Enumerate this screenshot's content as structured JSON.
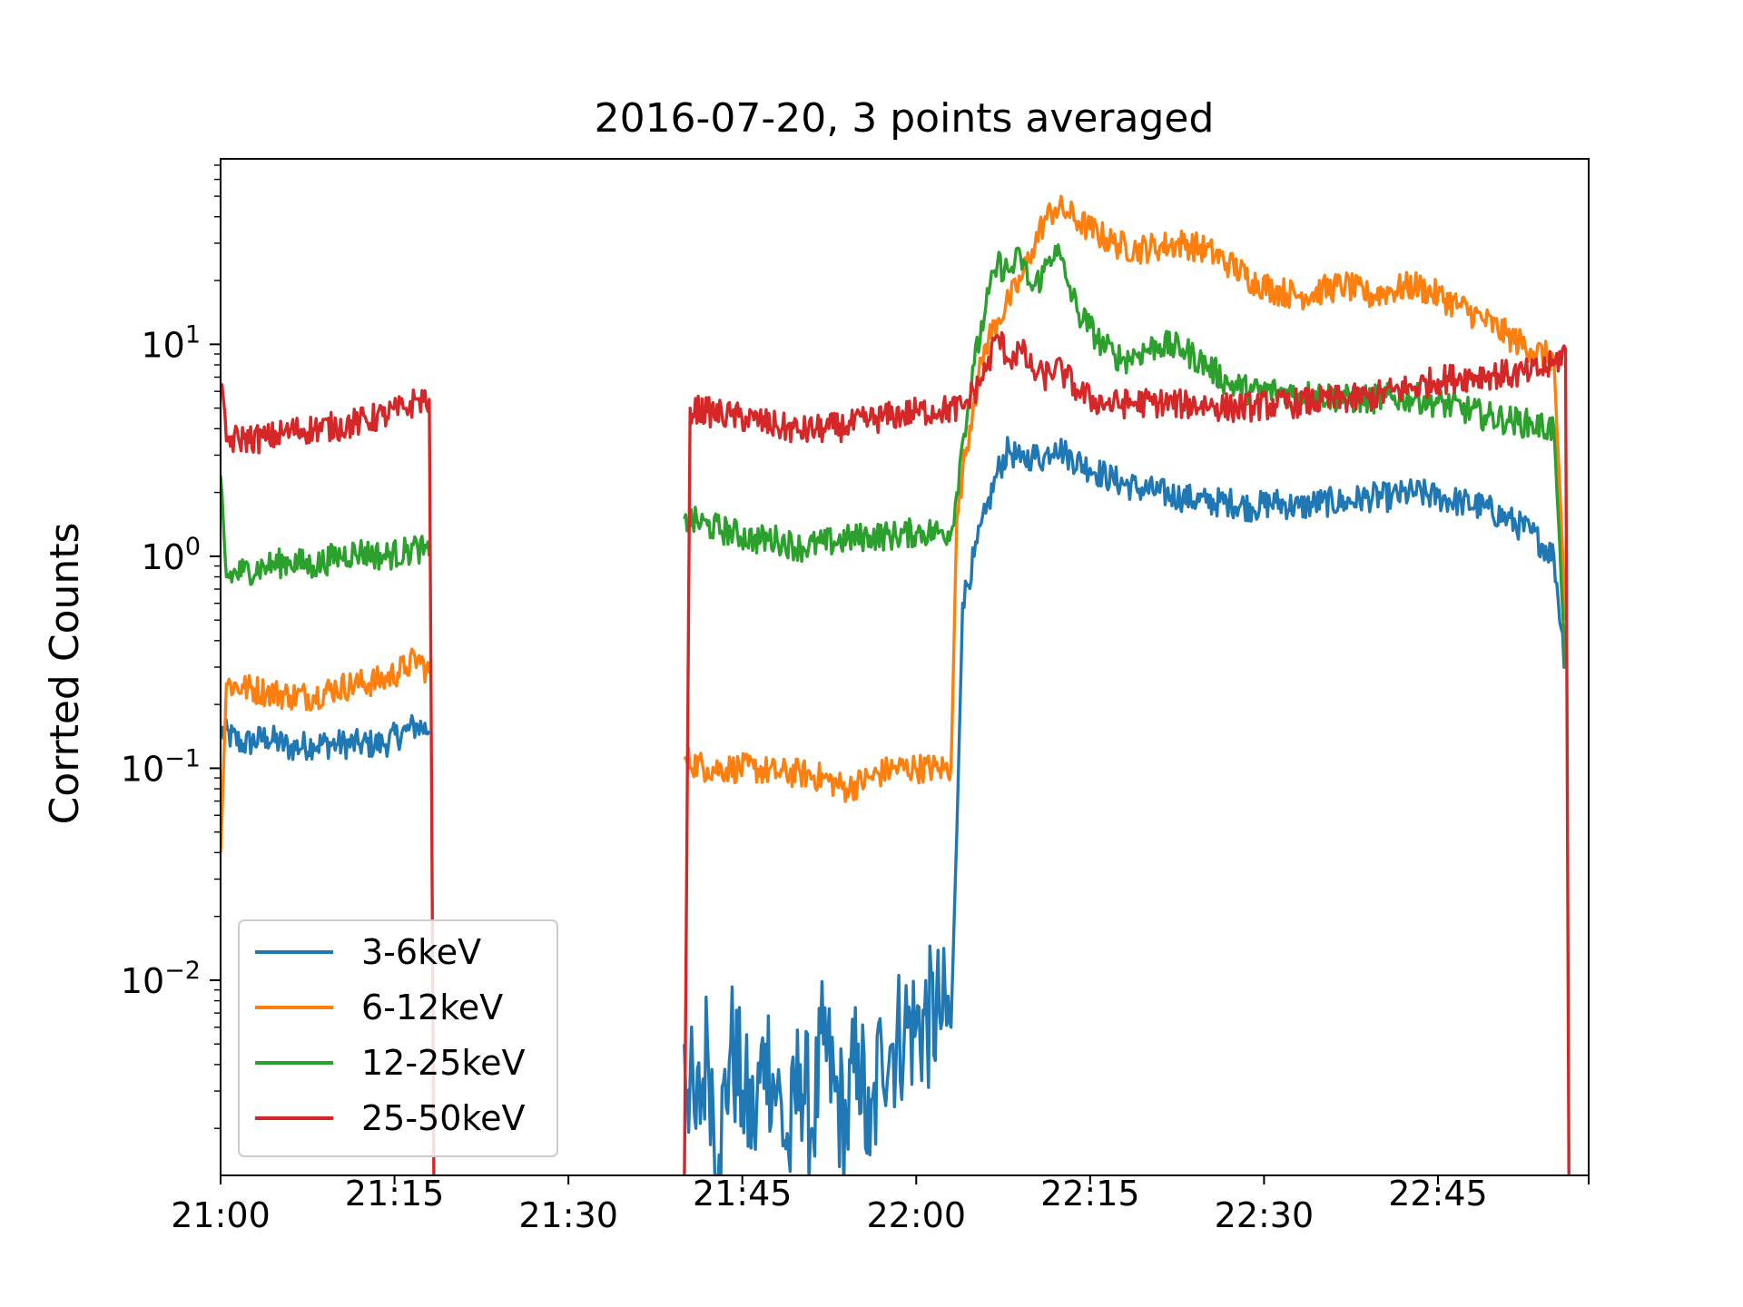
{
  "chart_data": {
    "type": "line",
    "title": "2016-07-20, 3 points averaged",
    "xlabel": "",
    "ylabel": "Corrted Counts",
    "yscale": "log",
    "xlim": [
      "21:00",
      "22:58"
    ],
    "ylim": [
      0.0012,
      75
    ],
    "grid": false,
    "legend_position": "lower-left",
    "x_ticks": [
      "21:00",
      "21:15",
      "21:30",
      "21:45",
      "22:00",
      "22:15",
      "22:30",
      "22:45"
    ],
    "y_ticks": [
      {
        "value": 0.01,
        "base": "10",
        "exp": "−2"
      },
      {
        "value": 0.1,
        "base": "10",
        "exp": "−1"
      },
      {
        "value": 1,
        "base": "10",
        "exp": "0"
      },
      {
        "value": 10,
        "base": "10",
        "exp": "1"
      }
    ],
    "series": [
      {
        "name": "3-6keV",
        "color": "#1f77b4",
        "segments": [
          [
            [
              "21:00",
              0.15
            ],
            [
              "21:02",
              0.13
            ],
            [
              "21:04",
              0.14
            ],
            [
              "21:06",
              0.125
            ],
            [
              "21:08",
              0.13
            ],
            [
              "21:10",
              0.13
            ],
            [
              "21:12",
              0.13
            ],
            [
              "21:14",
              0.13
            ],
            [
              "21:16",
              0.15
            ],
            [
              "21:17",
              0.16
            ],
            [
              "21:18",
              0.15
            ]
          ],
          [
            [
              "21:40",
              0.005
            ],
            [
              "21:41",
              0.002
            ],
            [
              "21:42",
              0.005
            ],
            [
              "21:43",
              0.0015
            ],
            [
              "21:44",
              0.005
            ],
            [
              "21:45",
              0.003
            ],
            [
              "21:46",
              0.002
            ],
            [
              "21:47",
              0.005
            ],
            [
              "21:48",
              0.003
            ],
            [
              "21:49",
              0.0015
            ],
            [
              "21:50",
              0.004
            ],
            [
              "21:51",
              0.002
            ],
            [
              "21:52",
              0.005
            ],
            [
              "21:53",
              0.003
            ],
            [
              "21:54",
              0.002
            ],
            [
              "21:55",
              0.005
            ],
            [
              "21:56",
              0.0015
            ],
            [
              "21:57",
              0.005
            ],
            [
              "21:58",
              0.005
            ],
            [
              "21:59",
              0.006
            ],
            [
              "22:00",
              0.006
            ],
            [
              "22:02",
              0.007
            ],
            [
              "22:03",
              0.006
            ],
            [
              "22:03.5",
              0.05
            ],
            [
              "22:04",
              0.6
            ],
            [
              "22:05",
              1.0
            ],
            [
              "22:06",
              1.6
            ],
            [
              "22:07",
              2.5
            ],
            [
              "22:08",
              3.2
            ],
            [
              "22:09",
              2.8
            ],
            [
              "22:10",
              3.0
            ],
            [
              "22:11",
              2.9
            ],
            [
              "22:12",
              3.4
            ],
            [
              "22:13",
              3.0
            ],
            [
              "22:15",
              2.6
            ],
            [
              "22:17",
              2.3
            ],
            [
              "22:19",
              2.1
            ],
            [
              "22:21",
              2.0
            ],
            [
              "22:23",
              1.9
            ],
            [
              "22:25",
              1.8
            ],
            [
              "22:27",
              1.8
            ],
            [
              "22:29",
              1.7
            ],
            [
              "22:31",
              1.8
            ],
            [
              "22:33",
              1.7
            ],
            [
              "22:35",
              1.8
            ],
            [
              "22:37",
              1.8
            ],
            [
              "22:39",
              1.9
            ],
            [
              "22:41",
              1.9
            ],
            [
              "22:43",
              2.0
            ],
            [
              "22:45",
              1.9
            ],
            [
              "22:47",
              1.8
            ],
            [
              "22:49",
              1.7
            ],
            [
              "22:51",
              1.5
            ],
            [
              "22:53",
              1.3
            ],
            [
              "22:55",
              1.0
            ],
            [
              "22:56",
              0.3
            ]
          ]
        ]
      },
      {
        "name": "6-12keV",
        "color": "#ff7f0e",
        "segments": [
          [
            [
              "21:00",
              0.04
            ],
            [
              "21:00.5",
              0.25
            ],
            [
              "21:02",
              0.24
            ],
            [
              "21:04",
              0.23
            ],
            [
              "21:06",
              0.22
            ],
            [
              "21:08",
              0.22
            ],
            [
              "21:10",
              0.24
            ],
            [
              "21:12",
              0.25
            ],
            [
              "21:14",
              0.26
            ],
            [
              "21:16",
              0.3
            ],
            [
              "21:17",
              0.33
            ],
            [
              "21:18",
              0.28
            ]
          ],
          [
            [
              "21:40",
              0.11
            ],
            [
              "21:42",
              0.1
            ],
            [
              "21:44",
              0.1
            ],
            [
              "21:46",
              0.1
            ],
            [
              "21:48",
              0.095
            ],
            [
              "21:50",
              0.095
            ],
            [
              "21:52",
              0.09
            ],
            [
              "21:54",
              0.08
            ],
            [
              "21:56",
              0.09
            ],
            [
              "21:58",
              0.1
            ],
            [
              "22:00",
              0.1
            ],
            [
              "22:02",
              0.1
            ],
            [
              "22:03",
              0.1
            ],
            [
              "22:03.5",
              1.5
            ],
            [
              "22:04",
              2.5
            ],
            [
              "22:05",
              5.5
            ],
            [
              "22:06",
              10
            ],
            [
              "22:07",
              13
            ],
            [
              "22:08",
              16
            ],
            [
              "22:09",
              20
            ],
            [
              "22:10",
              28
            ],
            [
              "22:11",
              38
            ],
            [
              "22:12",
              44
            ],
            [
              "22:13",
              42
            ],
            [
              "22:14",
              38
            ],
            [
              "22:15",
              35
            ],
            [
              "22:17",
              30
            ],
            [
              "22:19",
              28
            ],
            [
              "22:21",
              29
            ],
            [
              "22:23",
              30
            ],
            [
              "22:25",
              28
            ],
            [
              "22:27",
              24
            ],
            [
              "22:29",
              20
            ],
            [
              "22:31",
              18
            ],
            [
              "22:33",
              17
            ],
            [
              "22:35",
              18
            ],
            [
              "22:37",
              19
            ],
            [
              "22:39",
              17
            ],
            [
              "22:41",
              18
            ],
            [
              "22:43",
              19
            ],
            [
              "22:45",
              17
            ],
            [
              "22:47",
              15
            ],
            [
              "22:49",
              13
            ],
            [
              "22:51",
              11
            ],
            [
              "22:53",
              9.5
            ],
            [
              "22:55",
              8.5
            ],
            [
              "22:56",
              0.5
            ]
          ]
        ]
      },
      {
        "name": "12-25keV",
        "color": "#2ca02c",
        "segments": [
          [
            [
              "21:00",
              2.4
            ],
            [
              "21:00.5",
              0.8
            ],
            [
              "21:02",
              0.85
            ],
            [
              "21:04",
              0.9
            ],
            [
              "21:06",
              0.95
            ],
            [
              "21:08",
              0.9
            ],
            [
              "21:10",
              1.0
            ],
            [
              "21:12",
              1.05
            ],
            [
              "21:14",
              1.0
            ],
            [
              "21:16",
              1.05
            ],
            [
              "21:17",
              1.1
            ],
            [
              "21:18",
              1.0
            ]
          ],
          [
            [
              "21:40",
              1.5
            ],
            [
              "21:42",
              1.4
            ],
            [
              "21:44",
              1.3
            ],
            [
              "21:46",
              1.2
            ],
            [
              "21:48",
              1.2
            ],
            [
              "21:50",
              1.1
            ],
            [
              "21:52",
              1.15
            ],
            [
              "21:54",
              1.2
            ],
            [
              "21:56",
              1.25
            ],
            [
              "21:58",
              1.25
            ],
            [
              "22:00",
              1.3
            ],
            [
              "22:02",
              1.3
            ],
            [
              "22:03",
              1.3
            ],
            [
              "22:03.5",
              2.0
            ],
            [
              "22:04",
              3.5
            ],
            [
              "22:05",
              8.0
            ],
            [
              "22:06",
              15
            ],
            [
              "22:07",
              24
            ],
            [
              "22:08",
              22
            ],
            [
              "22:09",
              26
            ],
            [
              "22:10",
              18
            ],
            [
              "22:11",
              22
            ],
            [
              "22:12",
              29
            ],
            [
              "22:13",
              20
            ],
            [
              "22:14",
              14
            ],
            [
              "22:15",
              12
            ],
            [
              "22:16",
              10
            ],
            [
              "22:17",
              9
            ],
            [
              "22:18",
              8.5
            ],
            [
              "22:19",
              9
            ],
            [
              "22:21",
              10
            ],
            [
              "22:23",
              9.5
            ],
            [
              "22:25",
              8
            ],
            [
              "22:27",
              6.5
            ],
            [
              "22:29",
              6
            ],
            [
              "22:31",
              6
            ],
            [
              "22:33",
              5.8
            ],
            [
              "22:35",
              5.8
            ],
            [
              "22:37",
              5.5
            ],
            [
              "22:39",
              5.5
            ],
            [
              "22:41",
              5.6
            ],
            [
              "22:43",
              5.6
            ],
            [
              "22:45",
              5.3
            ],
            [
              "22:47",
              5.0
            ],
            [
              "22:49",
              4.6
            ],
            [
              "22:51",
              4.4
            ],
            [
              "22:53",
              4.2
            ],
            [
              "22:55",
              4.0
            ],
            [
              "22:56",
              0.3
            ]
          ]
        ]
      },
      {
        "name": "25-50keV",
        "color": "#d62728",
        "segments": [
          [
            [
              "21:00",
              6.5
            ],
            [
              "21:00.5",
              3.5
            ],
            [
              "21:02",
              3.6
            ],
            [
              "21:04",
              3.6
            ],
            [
              "21:06",
              3.9
            ],
            [
              "21:08",
              4.0
            ],
            [
              "21:10",
              4.1
            ],
            [
              "21:12",
              4.3
            ],
            [
              "21:14",
              4.6
            ],
            [
              "21:16",
              5.0
            ],
            [
              "21:17",
              5.5
            ],
            [
              "21:18",
              5.5
            ],
            [
              "21:18.4",
              0.001
            ]
          ],
          [
            [
              "21:40",
              0.001
            ],
            [
              "21:40.5",
              5.0
            ],
            [
              "21:42",
              4.8
            ],
            [
              "21:44",
              4.6
            ],
            [
              "21:46",
              4.4
            ],
            [
              "21:48",
              4.1
            ],
            [
              "21:50",
              3.9
            ],
            [
              "21:52",
              4.0
            ],
            [
              "21:54",
              4.1
            ],
            [
              "21:56",
              4.4
            ],
            [
              "21:58",
              4.6
            ],
            [
              "22:00",
              4.8
            ],
            [
              "22:02",
              4.9
            ],
            [
              "22:04",
              5.0
            ],
            [
              "22:05",
              6.0
            ],
            [
              "22:06",
              7.5
            ],
            [
              "22:07",
              11
            ],
            [
              "22:08",
              8.5
            ],
            [
              "22:09",
              9.5
            ],
            [
              "22:10",
              7.5
            ],
            [
              "22:11",
              7.0
            ],
            [
              "22:12",
              7.8
            ],
            [
              "22:13",
              7.0
            ],
            [
              "22:14",
              6.0
            ],
            [
              "22:15",
              5.5
            ],
            [
              "22:17",
              5.2
            ],
            [
              "22:19",
              5.3
            ],
            [
              "22:21",
              5.3
            ],
            [
              "22:23",
              5.2
            ],
            [
              "22:25",
              5.2
            ],
            [
              "22:27",
              5.0
            ],
            [
              "22:29",
              5.1
            ],
            [
              "22:31",
              5.2
            ],
            [
              "22:33",
              5.3
            ],
            [
              "22:35",
              5.4
            ],
            [
              "22:37",
              5.5
            ],
            [
              "22:39",
              5.6
            ],
            [
              "22:41",
              6.0
            ],
            [
              "22:43",
              6.3
            ],
            [
              "22:45",
              6.8
            ],
            [
              "22:47",
              7.0
            ],
            [
              "22:49",
              7.2
            ],
            [
              "22:51",
              7.2
            ],
            [
              "22:53",
              7.3
            ],
            [
              "22:55",
              8.0
            ],
            [
              "22:56",
              9.5
            ],
            [
              "22:56.3",
              0.001
            ]
          ]
        ]
      }
    ]
  }
}
